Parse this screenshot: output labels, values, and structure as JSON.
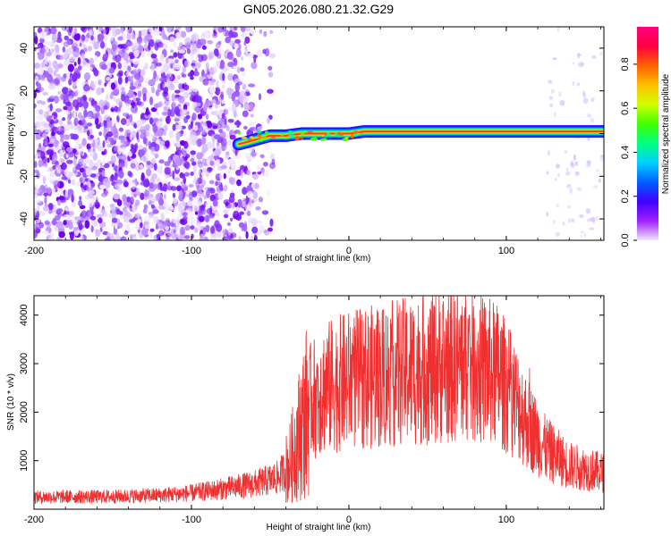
{
  "title": "GN05.2026.080.21.32.G29",
  "colors": {
    "line": "#f03030",
    "noise": "#8000ff",
    "frame": "#000000"
  },
  "chart_data": [
    {
      "type": "heatmap",
      "xlabel": "Height of straight line (km)",
      "ylabel": "Frequency (Hz)",
      "xlim": [
        -200,
        162
      ],
      "ylim": [
        -50,
        50
      ],
      "xticks": [
        "-200",
        "-100",
        "0",
        "100"
      ],
      "yticks": [
        "40",
        "20",
        "0",
        "-20",
        "-40"
      ],
      "yticks_values": [
        40,
        20,
        0,
        -20,
        -40
      ],
      "xticks_values": [
        -200,
        -100,
        0,
        100
      ],
      "colorbar": {
        "label": "Normalized spectral amplitude",
        "ticks": [
          "0.0",
          "0.2",
          "0.4",
          "0.6",
          "0.8"
        ],
        "ticks_values": [
          0,
          0.2,
          0.4,
          0.6,
          0.8
        ],
        "range": [
          0,
          0.97
        ],
        "stops": [
          "#f0e6ff",
          "#a020ff",
          "#4000ff",
          "#0060ff",
          "#00d0ff",
          "#00ff80",
          "#40ff00",
          "#d0ff00",
          "#ffc000",
          "#ff6000",
          "#ff0040",
          "#ff0080"
        ]
      },
      "noise_region": {
        "x_from": -200,
        "x_to": -50,
        "y_from": -50,
        "y_to": 50
      },
      "signal_track": [
        {
          "x": -70,
          "y": -5
        },
        {
          "x": -65,
          "y": -4
        },
        {
          "x": -60,
          "y": -3
        },
        {
          "x": -55,
          "y": -2
        },
        {
          "x": -50,
          "y": -1
        },
        {
          "x": -40,
          "y": -1
        },
        {
          "x": -30,
          "y": 0
        },
        {
          "x": -20,
          "y": 0
        },
        {
          "x": -10,
          "y": 0
        },
        {
          "x": 0,
          "y": 0
        },
        {
          "x": 10,
          "y": 1
        },
        {
          "x": 50,
          "y": 1
        },
        {
          "x": 100,
          "y": 1
        },
        {
          "x": 162,
          "y": 1
        }
      ]
    },
    {
      "type": "line",
      "xlabel": "Height of straight line (km)",
      "ylabel": "SNR (10 * v/v)",
      "xlim": [
        -200,
        162
      ],
      "ylim": [
        0,
        4400
      ],
      "xticks": [
        "-200",
        "-100",
        "0",
        "100"
      ],
      "xticks_values": [
        -200,
        -100,
        0,
        100
      ],
      "yticks": [
        "1000",
        "2000",
        "3000",
        "4000"
      ],
      "yticks_values": [
        1000,
        2000,
        3000,
        4000
      ],
      "envelope": [
        {
          "x": -200,
          "y": 250
        },
        {
          "x": -150,
          "y": 260
        },
        {
          "x": -120,
          "y": 290
        },
        {
          "x": -100,
          "y": 330
        },
        {
          "x": -80,
          "y": 420
        },
        {
          "x": -60,
          "y": 520
        },
        {
          "x": -45,
          "y": 650
        },
        {
          "x": -38,
          "y": 900
        },
        {
          "x": -32,
          "y": 1500
        },
        {
          "x": -25,
          "y": 2200
        },
        {
          "x": -15,
          "y": 2500
        },
        {
          "x": 0,
          "y": 2650
        },
        {
          "x": 20,
          "y": 2750
        },
        {
          "x": 40,
          "y": 2850
        },
        {
          "x": 60,
          "y": 2950
        },
        {
          "x": 75,
          "y": 3000
        },
        {
          "x": 95,
          "y": 2750
        },
        {
          "x": 105,
          "y": 2300
        },
        {
          "x": 115,
          "y": 1700
        },
        {
          "x": 125,
          "y": 1250
        },
        {
          "x": 140,
          "y": 900
        },
        {
          "x": 162,
          "y": 750
        }
      ]
    }
  ]
}
